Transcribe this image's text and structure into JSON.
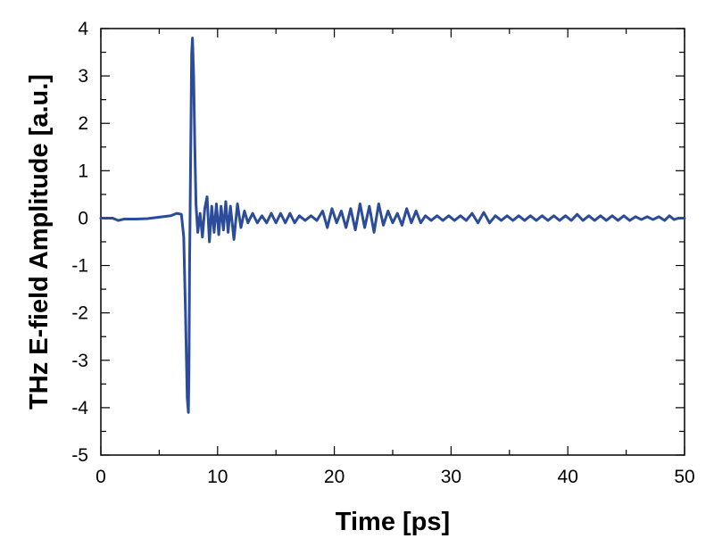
{
  "chart_data": {
    "type": "line",
    "title": "",
    "xlabel": "Time [ps]",
    "ylabel": "THz E-field Amplitude [a.u.]",
    "xlim": [
      0,
      50
    ],
    "ylim": [
      -5,
      4
    ],
    "x_ticks": [
      0,
      10,
      20,
      30,
      40,
      50
    ],
    "y_ticks": [
      -5,
      -4,
      -3,
      -2,
      -1,
      0,
      1,
      2,
      3,
      4
    ],
    "x_tick_labels": [
      "0",
      "10",
      "20",
      "30",
      "40",
      "50"
    ],
    "y_tick_labels": [
      "-5",
      "-4",
      "-3",
      "-2",
      "-1",
      "0",
      "1",
      "2",
      "3",
      "4"
    ],
    "grid": false,
    "line_color": "#2b4b9b",
    "series": [
      {
        "points": [
          [
            0.0,
            0.0
          ],
          [
            1.0,
            0.0
          ],
          [
            1.5,
            -0.05
          ],
          [
            2.0,
            -0.02
          ],
          [
            3.0,
            -0.02
          ],
          [
            4.0,
            -0.01
          ],
          [
            5.0,
            0.02
          ],
          [
            6.0,
            0.05
          ],
          [
            6.5,
            0.1
          ],
          [
            6.9,
            0.08
          ],
          [
            7.1,
            -0.4
          ],
          [
            7.25,
            -2.0
          ],
          [
            7.4,
            -3.8
          ],
          [
            7.5,
            -4.1
          ],
          [
            7.55,
            -3.2
          ],
          [
            7.6,
            -1.0
          ],
          [
            7.7,
            1.5
          ],
          [
            7.78,
            3.5
          ],
          [
            7.85,
            3.8
          ],
          [
            7.95,
            3.0
          ],
          [
            8.05,
            1.5
          ],
          [
            8.15,
            0.3
          ],
          [
            8.3,
            -0.3
          ],
          [
            8.5,
            0.1
          ],
          [
            8.7,
            -0.4
          ],
          [
            8.9,
            0.2
          ],
          [
            9.1,
            0.45
          ],
          [
            9.3,
            -0.5
          ],
          [
            9.5,
            0.25
          ],
          [
            9.7,
            -0.3
          ],
          [
            9.9,
            0.3
          ],
          [
            10.1,
            -0.35
          ],
          [
            10.3,
            0.25
          ],
          [
            10.5,
            -0.25
          ],
          [
            10.7,
            0.35
          ],
          [
            10.9,
            -0.3
          ],
          [
            11.1,
            0.25
          ],
          [
            11.4,
            -0.45
          ],
          [
            11.7,
            0.3
          ],
          [
            12.0,
            -0.2
          ],
          [
            12.3,
            0.15
          ],
          [
            12.6,
            -0.1
          ],
          [
            13.0,
            0.1
          ],
          [
            13.4,
            -0.1
          ],
          [
            13.8,
            0.05
          ],
          [
            14.2,
            -0.1
          ],
          [
            14.6,
            0.1
          ],
          [
            15.0,
            -0.1
          ],
          [
            15.4,
            0.1
          ],
          [
            15.8,
            -0.1
          ],
          [
            16.2,
            0.1
          ],
          [
            16.6,
            -0.1
          ],
          [
            17.0,
            0.05
          ],
          [
            17.5,
            -0.05
          ],
          [
            18.0,
            0.05
          ],
          [
            18.5,
            -0.05
          ],
          [
            19.0,
            0.15
          ],
          [
            19.4,
            -0.2
          ],
          [
            19.8,
            0.2
          ],
          [
            20.2,
            -0.1
          ],
          [
            20.6,
            0.15
          ],
          [
            21.0,
            -0.2
          ],
          [
            21.4,
            0.2
          ],
          [
            21.8,
            -0.25
          ],
          [
            22.2,
            0.3
          ],
          [
            22.6,
            -0.2
          ],
          [
            23.0,
            0.25
          ],
          [
            23.4,
            -0.3
          ],
          [
            23.8,
            0.3
          ],
          [
            24.2,
            -0.15
          ],
          [
            24.6,
            0.15
          ],
          [
            25.0,
            -0.1
          ],
          [
            25.4,
            0.1
          ],
          [
            25.8,
            -0.15
          ],
          [
            26.2,
            0.2
          ],
          [
            26.6,
            -0.1
          ],
          [
            27.0,
            0.15
          ],
          [
            27.4,
            -0.1
          ],
          [
            27.8,
            0.05
          ],
          [
            28.3,
            -0.05
          ],
          [
            28.8,
            0.05
          ],
          [
            29.3,
            -0.05
          ],
          [
            29.8,
            0.05
          ],
          [
            30.3,
            -0.05
          ],
          [
            30.8,
            0.05
          ],
          [
            31.3,
            -0.05
          ],
          [
            31.8,
            0.1
          ],
          [
            32.3,
            -0.1
          ],
          [
            32.8,
            0.12
          ],
          [
            33.3,
            -0.1
          ],
          [
            33.8,
            0.05
          ],
          [
            34.3,
            -0.05
          ],
          [
            34.8,
            0.05
          ],
          [
            35.3,
            -0.05
          ],
          [
            35.8,
            0.05
          ],
          [
            36.3,
            -0.05
          ],
          [
            36.8,
            0.05
          ],
          [
            37.3,
            -0.05
          ],
          [
            37.8,
            0.05
          ],
          [
            38.3,
            -0.05
          ],
          [
            38.8,
            0.05
          ],
          [
            39.3,
            -0.05
          ],
          [
            39.8,
            0.05
          ],
          [
            40.3,
            -0.05
          ],
          [
            40.8,
            0.08
          ],
          [
            41.3,
            -0.05
          ],
          [
            41.8,
            0.05
          ],
          [
            42.3,
            -0.05
          ],
          [
            42.8,
            0.05
          ],
          [
            43.3,
            -0.05
          ],
          [
            43.8,
            0.05
          ],
          [
            44.3,
            -0.05
          ],
          [
            44.8,
            0.05
          ],
          [
            45.3,
            -0.05
          ],
          [
            45.8,
            0.03
          ],
          [
            46.3,
            -0.03
          ],
          [
            46.8,
            0.03
          ],
          [
            47.3,
            -0.03
          ],
          [
            47.8,
            0.03
          ],
          [
            48.3,
            -0.05
          ],
          [
            48.7,
            0.05
          ],
          [
            49.1,
            -0.03
          ],
          [
            49.5,
            0.0
          ],
          [
            50.0,
            0.0
          ]
        ]
      }
    ]
  }
}
